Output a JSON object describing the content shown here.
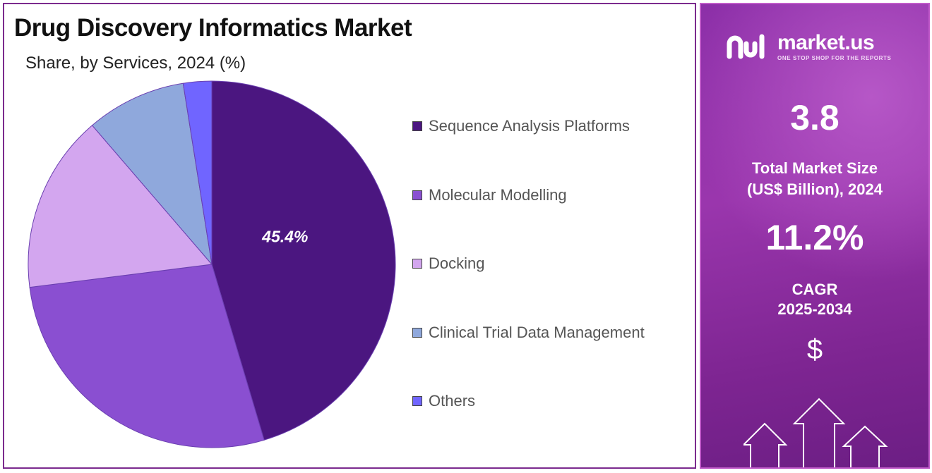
{
  "chart_data": {
    "type": "pie",
    "title": "Drug Discovery Informatics Market",
    "subtitle": "Share, by Services, 2024 (%)",
    "categories": [
      "Sequence Analysis Platforms",
      "Molecular Modelling",
      "Docking",
      "Clinical Trial Data Management",
      "Others"
    ],
    "values": [
      45.4,
      27.6,
      15.7,
      8.8,
      2.5
    ],
    "colors": [
      "#4b1680",
      "#8a4fd1",
      "#d3a6ef",
      "#8fa8dc",
      "#7065ff"
    ],
    "data_labels": [
      "45.4%",
      "",
      "",
      "",
      ""
    ],
    "legend_position": "right"
  },
  "side_panel": {
    "logo_name": "market.us",
    "logo_tagline": "ONE STOP SHOP FOR THE REPORTS",
    "market_size_value": "3.8",
    "market_size_label_line1": "Total Market Size",
    "market_size_label_line2": "(US$ Billion), 2024",
    "cagr_value": "11.2%",
    "cagr_label_line1": "CAGR",
    "cagr_label_line2": "2025-2034",
    "currency_symbol": "$"
  }
}
